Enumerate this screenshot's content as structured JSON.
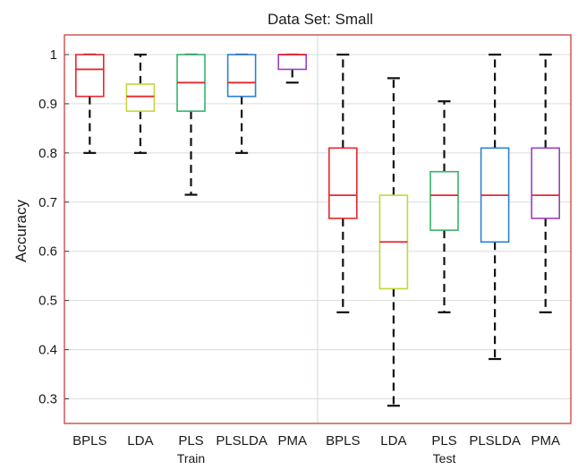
{
  "chart_data": {
    "type": "boxplot",
    "title": "Data Set: Small",
    "ylabel": "Accuracy",
    "ylim": [
      0.25,
      1.04
    ],
    "yticks": [
      0.3,
      0.4,
      0.5,
      0.6,
      0.7,
      0.8,
      0.9,
      1
    ],
    "ytick_labels": [
      "0.3",
      "0.4",
      "0.5",
      "0.6",
      "0.7",
      "0.8",
      "0.9",
      "1"
    ],
    "grid": true,
    "groups": [
      {
        "label": "Train",
        "boxes": [
          {
            "name": "BPLS",
            "color": "#e8262d",
            "whisker_low": 0.8,
            "q1": 0.915,
            "median": 0.97,
            "q3": 1.0,
            "whisker_high": 1.0
          },
          {
            "name": "LDA",
            "color": "#c4d63a",
            "whisker_low": 0.8,
            "q1": 0.885,
            "median": 0.915,
            "q3": 0.94,
            "whisker_high": 1.0
          },
          {
            "name": "PLS",
            "color": "#34b56a",
            "whisker_low": 0.715,
            "q1": 0.885,
            "median": 0.943,
            "q3": 1.0,
            "whisker_high": 1.0
          },
          {
            "name": "PLSLDA",
            "color": "#2d7fd0",
            "whisker_low": 0.8,
            "q1": 0.915,
            "median": 0.943,
            "q3": 1.0,
            "whisker_high": 1.0
          },
          {
            "name": "PMA",
            "color": "#9b3fc1",
            "whisker_low": 0.943,
            "q1": 0.97,
            "median": 1.0,
            "q3": 1.0,
            "whisker_high": 1.0
          }
        ]
      },
      {
        "label": "Test",
        "boxes": [
          {
            "name": "BPLS",
            "color": "#e8262d",
            "whisker_low": 0.476,
            "q1": 0.667,
            "median": 0.714,
            "q3": 0.81,
            "whisker_high": 1.0
          },
          {
            "name": "LDA",
            "color": "#c4d63a",
            "whisker_low": 0.286,
            "q1": 0.524,
            "median": 0.619,
            "q3": 0.714,
            "whisker_high": 0.952
          },
          {
            "name": "PLS",
            "color": "#34b56a",
            "whisker_low": 0.476,
            "q1": 0.643,
            "median": 0.714,
            "q3": 0.762,
            "whisker_high": 0.905
          },
          {
            "name": "PLSLDA",
            "color": "#2d7fd0",
            "whisker_low": 0.381,
            "q1": 0.619,
            "median": 0.714,
            "q3": 0.81,
            "whisker_high": 1.0
          },
          {
            "name": "PMA",
            "color": "#9b3fc1",
            "whisker_low": 0.476,
            "q1": 0.667,
            "median": 0.714,
            "q3": 0.81,
            "whisker_high": 1.0
          }
        ]
      }
    ],
    "median_color": "#e8262d",
    "frame_color": "#c8403a"
  }
}
